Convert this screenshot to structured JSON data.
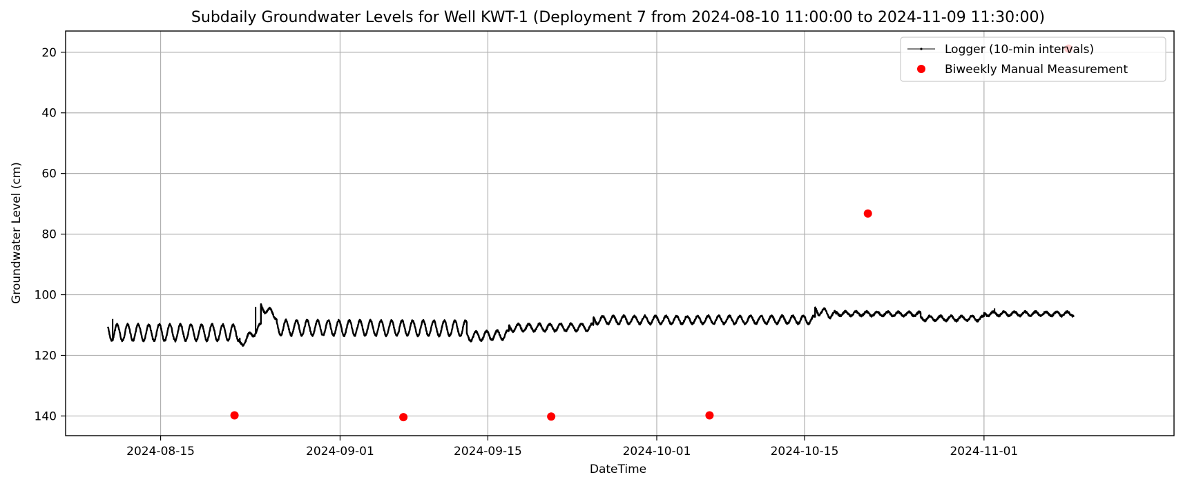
{
  "chart_data": {
    "type": "line",
    "title": "Subdaily Groundwater Levels for Well KWT-1 (Deployment 7 from 2024-08-10 11:00:00 to 2024-11-09 11:30:00)",
    "xlabel": "DateTime",
    "ylabel": "Groundwater Level (cm)",
    "xlim": [
      "2024-08-06",
      "2024-11-19"
    ],
    "ylim": [
      146.5,
      13
    ],
    "y_inverted": true,
    "x_ticks": [
      "2024-08-15",
      "2024-09-01",
      "2024-09-15",
      "2024-10-01",
      "2024-10-15",
      "2024-11-01"
    ],
    "y_ticks": [
      20,
      40,
      60,
      80,
      100,
      120,
      140
    ],
    "grid": true,
    "legend_position": "upper right",
    "series": [
      {
        "name": "Logger (10-min intervals)",
        "kind": "line",
        "color": "#000000",
        "segments": [
          {
            "start": "2024-08-10",
            "end": "2024-08-22.5",
            "base": 112.5,
            "amp": 2.7,
            "trend": 0
          },
          {
            "start": "2024-08-22.5",
            "end": "2024-08-24.5",
            "base": 113.5,
            "amp": 1.2,
            "trend": -3
          },
          {
            "start": "2024-08-24.5",
            "end": "2024-08-26",
            "base": 105.5,
            "amp": 1.2,
            "trend": 1.5
          },
          {
            "start": "2024-08-26",
            "end": "2024-09-13",
            "base": 111.0,
            "amp": 2.5,
            "trend": 0.1
          },
          {
            "start": "2024-09-13",
            "end": "2024-09-17",
            "base": 113.5,
            "amp": 1.5,
            "trend": -0.3
          },
          {
            "start": "2024-09-17",
            "end": "2024-09-25",
            "base": 110.8,
            "amp": 1.2,
            "trend": -0.1
          },
          {
            "start": "2024-09-25",
            "end": "2024-10-16",
            "base": 108.3,
            "amp": 1.3,
            "trend": -0.05
          },
          {
            "start": "2024-10-16",
            "end": "2024-10-18",
            "base": 106.0,
            "amp": 1.3,
            "trend": 1.0
          },
          {
            "start": "2024-10-18",
            "end": "2024-10-26",
            "base": 106.3,
            "amp": 0.7,
            "trend": 0.1
          },
          {
            "start": "2024-10-26",
            "end": "2024-11-01",
            "base": 107.8,
            "amp": 0.8,
            "trend": 0
          },
          {
            "start": "2024-11-01",
            "end": "2024-11-09.5",
            "base": 106.3,
            "amp": 0.7,
            "trend": 0
          }
        ],
        "notable_points": [
          {
            "x": "2024-08-10 11:00",
            "y": 108
          },
          {
            "x": "2024-08-24",
            "y": 104
          },
          {
            "x": "2024-10-16",
            "y": 104
          },
          {
            "x": "2024-11-02",
            "y": 104.5
          },
          {
            "x": "2024-11-09 11:30",
            "y": 107.2
          }
        ]
      },
      {
        "name": "Biweekly Manual Measurement",
        "kind": "scatter",
        "color": "#ff0000",
        "points": [
          {
            "x": "2024-08-22",
            "y": 139.8
          },
          {
            "x": "2024-09-07",
            "y": 140.4
          },
          {
            "x": "2024-09-21",
            "y": 140.2
          },
          {
            "x": "2024-10-06",
            "y": 139.8
          },
          {
            "x": "2024-10-21",
            "y": 73.2
          },
          {
            "x": "2024-11-09",
            "y": 18.8
          }
        ]
      }
    ]
  }
}
